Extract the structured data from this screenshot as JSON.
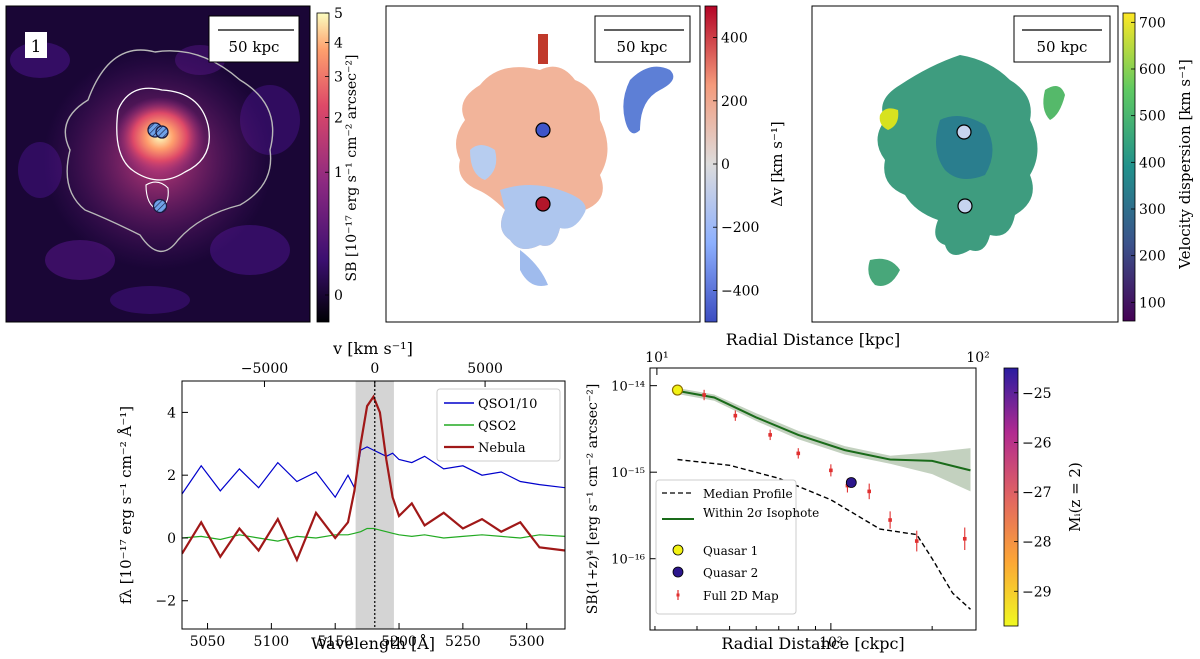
{
  "chart_data": [
    {
      "type": "heatmap",
      "panel": "surface-brightness-map",
      "panel_number": "1",
      "scalebar_label": "50 kpc",
      "colorbar_label": "SB [10⁻¹⁷ erg s⁻¹ cm⁻² arcsec⁻²]",
      "colorbar_ticks": [
        5,
        4,
        3,
        2,
        1,
        0
      ],
      "colorbar_tick_labels": [
        "5",
        "4",
        "3",
        "2",
        "1",
        "0"
      ],
      "colormap": [
        "#0d0221",
        "#3b0f70",
        "#8c2981",
        "#de4968",
        "#fe9f6d",
        "#fcfdbf"
      ],
      "contour_color": "#c8c8c8",
      "quasar_marker_color": "#6fa2e8"
    },
    {
      "type": "heatmap",
      "panel": "velocity-shift-map",
      "scalebar_label": "50 kpc",
      "colorbar_label": "Δv [km s⁻¹]",
      "colorbar_range": [
        -500,
        500
      ],
      "colorbar_ticks": [
        400,
        200,
        0,
        -200,
        -400
      ],
      "colorbar_tick_labels": [
        "400",
        "200",
        "0",
        "−200",
        "−400"
      ],
      "colormap": [
        "#3b4cc0",
        "#8db0fe",
        "#dddcdc",
        "#f49a7b",
        "#b40426"
      ],
      "quasar1_color": "#3f55c9",
      "quasar2_color": "#b3162a"
    },
    {
      "type": "heatmap",
      "panel": "velocity-dispersion-map",
      "scalebar_label": "50 kpc",
      "colorbar_label": "Velocity dispersion [km s⁻¹]",
      "colorbar_range": [
        60,
        720
      ],
      "colorbar_ticks": [
        700,
        600,
        500,
        400,
        300,
        200,
        100
      ],
      "colorbar_tick_labels": [
        "700",
        "600",
        "500",
        "400",
        "300",
        "200",
        "100"
      ],
      "colormap": [
        "#440154",
        "#3b528b",
        "#21918c",
        "#5ec962",
        "#fde725"
      ],
      "quasar_marker_color": "#c6d4ef"
    },
    {
      "type": "line",
      "panel": "spectrum",
      "xlabel": "Wavelength [Å]",
      "ylabel": "fλ [10⁻¹⁷ erg s⁻¹ cm⁻² Å⁻¹]",
      "top_xlabel": "v [km s⁻¹]",
      "xlim": [
        5030,
        5330
      ],
      "ylim": [
        -2.9,
        5.0
      ],
      "xticks": [
        5050,
        5100,
        5150,
        5200,
        5250,
        5300
      ],
      "xtick_labels": [
        "5050",
        "5100",
        "5150",
        "5200",
        "5250",
        "5300"
      ],
      "yticks": [
        -2,
        0,
        2,
        4
      ],
      "ytick_labels": [
        "−2",
        "0",
        "2",
        "4"
      ],
      "top_ticks_wavelength": [
        5094.6,
        5181,
        5267.4
      ],
      "top_tick_labels": [
        "−5000",
        "0",
        "5000"
      ],
      "line_center": 5181,
      "shaded_band": [
        5166,
        5196
      ],
      "legend_position": "top-right",
      "x": [
        5030,
        5045,
        5060,
        5075,
        5090,
        5105,
        5120,
        5135,
        5150,
        5160,
        5165,
        5170,
        5175,
        5180,
        5185,
        5190,
        5195,
        5200,
        5210,
        5220,
        5235,
        5250,
        5265,
        5280,
        5295,
        5310,
        5330
      ],
      "series": [
        {
          "name": "QSO1/10",
          "color": "#0000cc",
          "values": [
            1.4,
            2.3,
            1.5,
            2.2,
            1.6,
            2.4,
            1.8,
            2.1,
            1.3,
            2.0,
            1.6,
            2.8,
            2.9,
            2.8,
            2.7,
            2.6,
            2.7,
            2.5,
            2.4,
            2.6,
            2.2,
            2.3,
            2.0,
            2.1,
            1.8,
            1.7,
            1.6
          ]
        },
        {
          "name": "QSO2",
          "color": "#22aa22",
          "values": [
            0.0,
            0.05,
            -0.05,
            0.1,
            0.0,
            -0.1,
            0.05,
            0.0,
            0.1,
            0.1,
            0.15,
            0.2,
            0.3,
            0.3,
            0.25,
            0.2,
            0.15,
            0.1,
            0.05,
            0.1,
            0.0,
            0.05,
            0.1,
            0.05,
            0.0,
            0.1,
            0.05
          ]
        },
        {
          "name": "Nebula",
          "color": "#a01818",
          "values": [
            -0.5,
            0.5,
            -0.6,
            0.3,
            -0.4,
            0.6,
            -0.7,
            0.8,
            0.0,
            0.5,
            1.5,
            3.0,
            4.2,
            4.5,
            4.0,
            2.5,
            1.3,
            0.7,
            1.1,
            0.4,
            0.8,
            0.3,
            0.6,
            0.2,
            0.5,
            -0.3,
            -0.4
          ]
        }
      ]
    },
    {
      "type": "scatter",
      "panel": "radial-profile",
      "xlabel": "Radial Distance [ckpc]",
      "top_xlabel": "Radial Distance [kpc]",
      "ylabel": "SB(1+z)⁴ [erg s⁻¹ cm⁻² arcsec⁻²]",
      "colorbar_label": "Mᵢ(z = 2)",
      "colorbar_range": [
        -29.7,
        -24.5
      ],
      "colorbar_ticks": [
        -25,
        -26,
        -27,
        -28,
        -29
      ],
      "colorbar_tick_labels": [
        "−25",
        "−26",
        "−27",
        "−28",
        "−29"
      ],
      "xlim": [
        29,
        270
      ],
      "ylim": [
        1.5e-17,
        1.6e-14
      ],
      "xticks": [
        100
      ],
      "xtick_labels": [
        "10²"
      ],
      "top_xticks_ckpc": [
        30.4,
        304
      ],
      "top_xtick_labels": [
        "10¹",
        "10²"
      ],
      "yticks": [
        1e-16,
        1e-15,
        1e-14
      ],
      "ytick_labels": [
        "10⁻¹⁶",
        "10⁻¹⁵",
        "10⁻¹⁴"
      ],
      "legend_position": "lower-left",
      "series": [
        {
          "name": "Median Profile",
          "style": "dashed",
          "color": "#000000",
          "x": [
            35,
            50,
            70,
            100,
            140,
            180,
            200,
            230,
            260
          ],
          "y": [
            1.4e-15,
            1.2e-15,
            8.5e-16,
            4.8e-16,
            2.2e-16,
            1.9e-16,
            1e-16,
            4e-17,
            2.6e-17
          ]
        },
        {
          "name": "Within 2σ Isophote",
          "style": "solid",
          "color": "#1a6b1a",
          "band_color": "#b8c9b4",
          "x": [
            35,
            45,
            60,
            80,
            110,
            150,
            200,
            260
          ],
          "y": [
            8.7e-15,
            7.3e-15,
            4.3e-15,
            2.7e-15,
            1.8e-15,
            1.4e-15,
            1.35e-15,
            1.05e-15
          ],
          "upper": [
            9.4e-15,
            7.9e-15,
            4.8e-15,
            3e-15,
            2e-15,
            1.55e-15,
            1.7e-15,
            1.9e-15
          ],
          "lower": [
            8e-15,
            6.7e-15,
            3.9e-15,
            2.4e-15,
            1.6e-15,
            1.25e-15,
            9.5e-16,
            6e-16
          ]
        },
        {
          "name": "Quasar 1",
          "color": "#f2f213",
          "x": [
            35
          ],
          "y": [
            8.9e-15
          ]
        },
        {
          "name": "Quasar 2",
          "color": "#2c168c",
          "x": [
            115
          ],
          "y": [
            7.6e-16
          ]
        },
        {
          "name": "Full 2D Map",
          "style": "errorbar",
          "color": "#e03030",
          "x": [
            42,
            52,
            66,
            80,
            100,
            112,
            130,
            150,
            180,
            250
          ],
          "y": [
            7.8e-15,
            4.5e-15,
            2.7e-15,
            1.65e-15,
            1.05e-15,
            7e-16,
            6e-16,
            2.8e-16,
            1.6e-16,
            1.7e-16
          ],
          "err": [
            0.06,
            0.06,
            0.06,
            0.06,
            0.07,
            0.08,
            0.09,
            0.1,
            0.12,
            0.13
          ]
        }
      ]
    }
  ]
}
